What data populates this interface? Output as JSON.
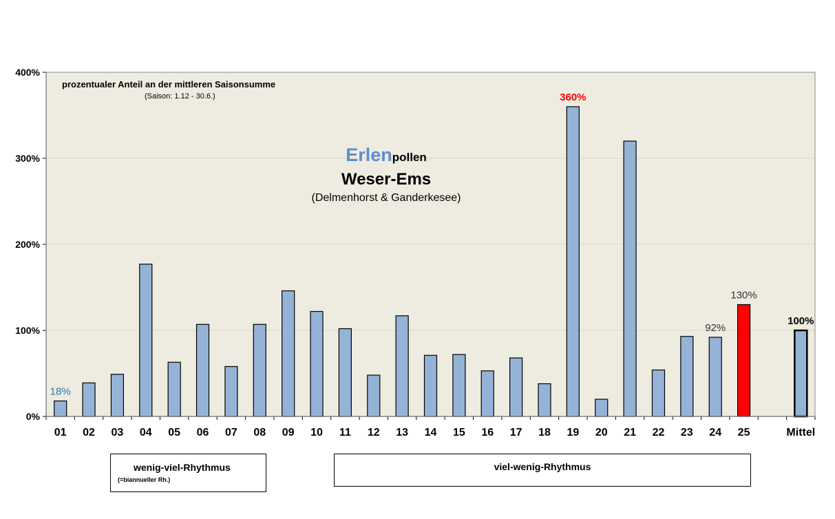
{
  "chart_data": {
    "type": "bar",
    "title_main": "Erlen",
    "title_suffix": "pollen",
    "subtitle": "Weser-Ems",
    "location": "(Delmenhorst & Ganderkesee)",
    "note_line1": "prozentualer Anteil an der mittleren Saisonsumme",
    "note_line2": "(Saison: 1.12 - 30.6.)",
    "categories": [
      "01",
      "02",
      "03",
      "04",
      "05",
      "06",
      "07",
      "08",
      "09",
      "10",
      "11",
      "12",
      "13",
      "14",
      "15",
      "16",
      "17",
      "18",
      "19",
      "20",
      "21",
      "22",
      "23",
      "24",
      "25",
      "",
      "Mittel"
    ],
    "values": [
      18,
      39,
      49,
      177,
      63,
      107,
      58,
      107,
      146,
      122,
      102,
      48,
      117,
      71,
      72,
      53,
      68,
      38,
      360,
      20,
      320,
      54,
      93,
      92,
      130,
      null,
      100
    ],
    "yticks": [
      "0%",
      "100%",
      "200%",
      "300%",
      "400%"
    ],
    "ylim": [
      0,
      400
    ],
    "grid": true,
    "data_labels": [
      {
        "index": 0,
        "text": "18%",
        "color": "#2E75B6",
        "bold": false
      },
      {
        "index": 18,
        "text": "360%",
        "color": "#FF0000",
        "bold": true
      },
      {
        "index": 23,
        "text": "92%",
        "color": "#333333",
        "bold": false
      },
      {
        "index": 24,
        "text": "130%",
        "color": "#333333",
        "bold": false
      },
      {
        "index": 26,
        "text": "100%",
        "color": "#000000",
        "bold": true
      }
    ],
    "colors": {
      "plot_bg": "#EEEBE0",
      "bar": "#95B3D7",
      "highlight": "#FF0000",
      "title_accent": "#5B8FD0",
      "grid": "#D9D6CB"
    },
    "highlight_index": 24,
    "mean_index": 26
  },
  "legend_boxes": {
    "left_label": "wenig-viel-Rhythmus",
    "left_sublabel": "(=biannueller Rh.)",
    "right_label": "viel-wenig-Rhythmus"
  }
}
